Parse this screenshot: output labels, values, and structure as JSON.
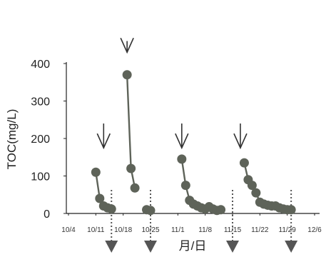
{
  "chart_data": {
    "type": "scatter",
    "title": "",
    "xlabel": "月/日",
    "ylabel": "TOC(mg/L)",
    "xlim": [
      "10/4",
      "12/6"
    ],
    "ylim": [
      0,
      400
    ],
    "x_ticks": [
      "10/4",
      "10/11",
      "10/18",
      "10/25",
      "11/1",
      "11/8",
      "11/15",
      "11/22",
      "11/29",
      "12/6"
    ],
    "y_ticks": [
      0,
      100,
      200,
      300,
      400
    ],
    "grid": false,
    "colors": {
      "series": "#5e6359",
      "arrow": "#333333",
      "dotted_arrow": "#555555"
    },
    "series": [
      {
        "points": [
          [
            "10/11",
            110
          ],
          [
            "10/12",
            40
          ],
          [
            "10/13",
            20
          ],
          [
            "10/14",
            15
          ],
          [
            "10/15",
            12
          ]
        ]
      },
      {
        "points": [
          [
            "10/19",
            370
          ],
          [
            "10/20",
            120
          ],
          [
            "10/21",
            68
          ]
        ]
      },
      {
        "points": [
          [
            "10/24",
            10
          ],
          [
            "10/25",
            8
          ]
        ]
      },
      {
        "points": [
          [
            "11/2",
            145
          ],
          [
            "11/3",
            75
          ],
          [
            "11/4",
            35
          ],
          [
            "11/5",
            25
          ],
          [
            "11/6",
            20
          ],
          [
            "11/7",
            15
          ],
          [
            "11/8",
            12
          ],
          [
            "11/9",
            18
          ],
          [
            "11/10",
            12
          ],
          [
            "11/11",
            8
          ],
          [
            "11/12",
            10
          ]
        ]
      },
      {
        "points": [
          [
            "11/18",
            135
          ],
          [
            "11/19",
            90
          ],
          [
            "11/20",
            75
          ],
          [
            "11/21",
            55
          ],
          [
            "11/22",
            30
          ],
          [
            "11/23",
            25
          ],
          [
            "11/24",
            22
          ],
          [
            "11/25",
            20
          ],
          [
            "11/26",
            20
          ],
          [
            "11/27",
            15
          ],
          [
            "11/28",
            12
          ],
          [
            "11/29",
            10
          ],
          [
            "11/30",
            10
          ]
        ]
      }
    ],
    "arrows_down_solid": [
      {
        "x": "10/13",
        "from": 240,
        "to": 175
      },
      {
        "x": "10/19",
        "from": 460,
        "to": 430
      },
      {
        "x": "11/2",
        "from": 240,
        "to": 175
      },
      {
        "x": "11/17",
        "from": 240,
        "to": 175
      }
    ],
    "arrows_down_dotted": [
      "10/15",
      "10/25",
      "11/15",
      "11/30"
    ]
  }
}
